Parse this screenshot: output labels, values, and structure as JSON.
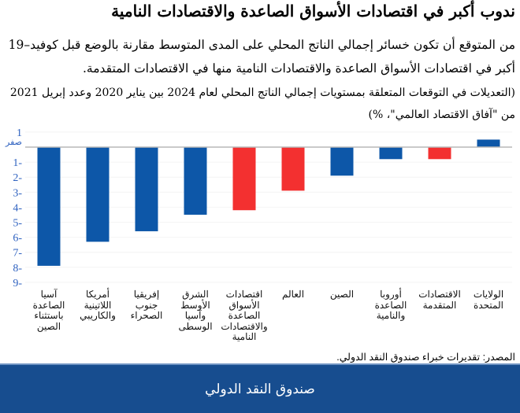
{
  "title": "ندوب أكبر في اقتصادات الأسواق الصاعدة والاقتصادات النامية",
  "subtitle": "من المتوقع أن تكون خسائر إجمالي الناتج المحلي على المدى المتوسط مقارنة بالوضع قبل كوفيد–19 أكبر في اقتصادات الأسواق الصاعدة والاقتصادات النامية منها في الاقتصادات المتقدمة.",
  "note": "(التعديلات في التوقعات المتعلقة بمستويات إجمالي الناتج المحلي لعام 2024 بين يناير 2020 وعدد إبريل 2021 من \"آفاق الاقتصاد العالمي\"، %)",
  "source": "المصدر: تقديرات خبراء صندوق النقد الدولي.",
  "footer": "صندوق النقد الدولي",
  "colors": {
    "blue": "#0d57a8",
    "red": "#f33030",
    "axis_labels": "#2f62c0"
  },
  "chart_data": {
    "type": "bar",
    "ylim": [
      -9,
      1
    ],
    "yticks": [
      1,
      0,
      -1,
      -2,
      -3,
      -4,
      -5,
      -6,
      -7,
      -8,
      -9
    ],
    "ytick_labels": [
      "1",
      "صفر",
      "1-",
      "2-",
      "3-",
      "4-",
      "5-",
      "6-",
      "7-",
      "8-",
      "9-"
    ],
    "grid": true,
    "categories": [
      "آسيا\nالصاعدة\nباستثناء\nالصين",
      "أمريكا\nاللاتينية\nوالكاريبي",
      "إفريقيا\nجنوب\nالصحراء",
      "الشرق\nالأوسط\nوآسيا\nالوسطى",
      "اقتصادات\nالأسواق\nالصاعدة\nوالاقتصادات\nالنامية",
      "العالم",
      "الصين",
      "أوروبا\nالصاعدة\nوالنامية",
      "الاقتصادات\nالمتقدمة",
      "الولايات\nالمتحدة"
    ],
    "values": [
      -7.9,
      -6.3,
      -5.6,
      -4.5,
      -4.2,
      -2.9,
      -1.9,
      -0.8,
      -0.8,
      0.5
    ],
    "bar_colors": [
      "blue",
      "blue",
      "blue",
      "blue",
      "red",
      "red",
      "blue",
      "blue",
      "red",
      "blue"
    ]
  }
}
